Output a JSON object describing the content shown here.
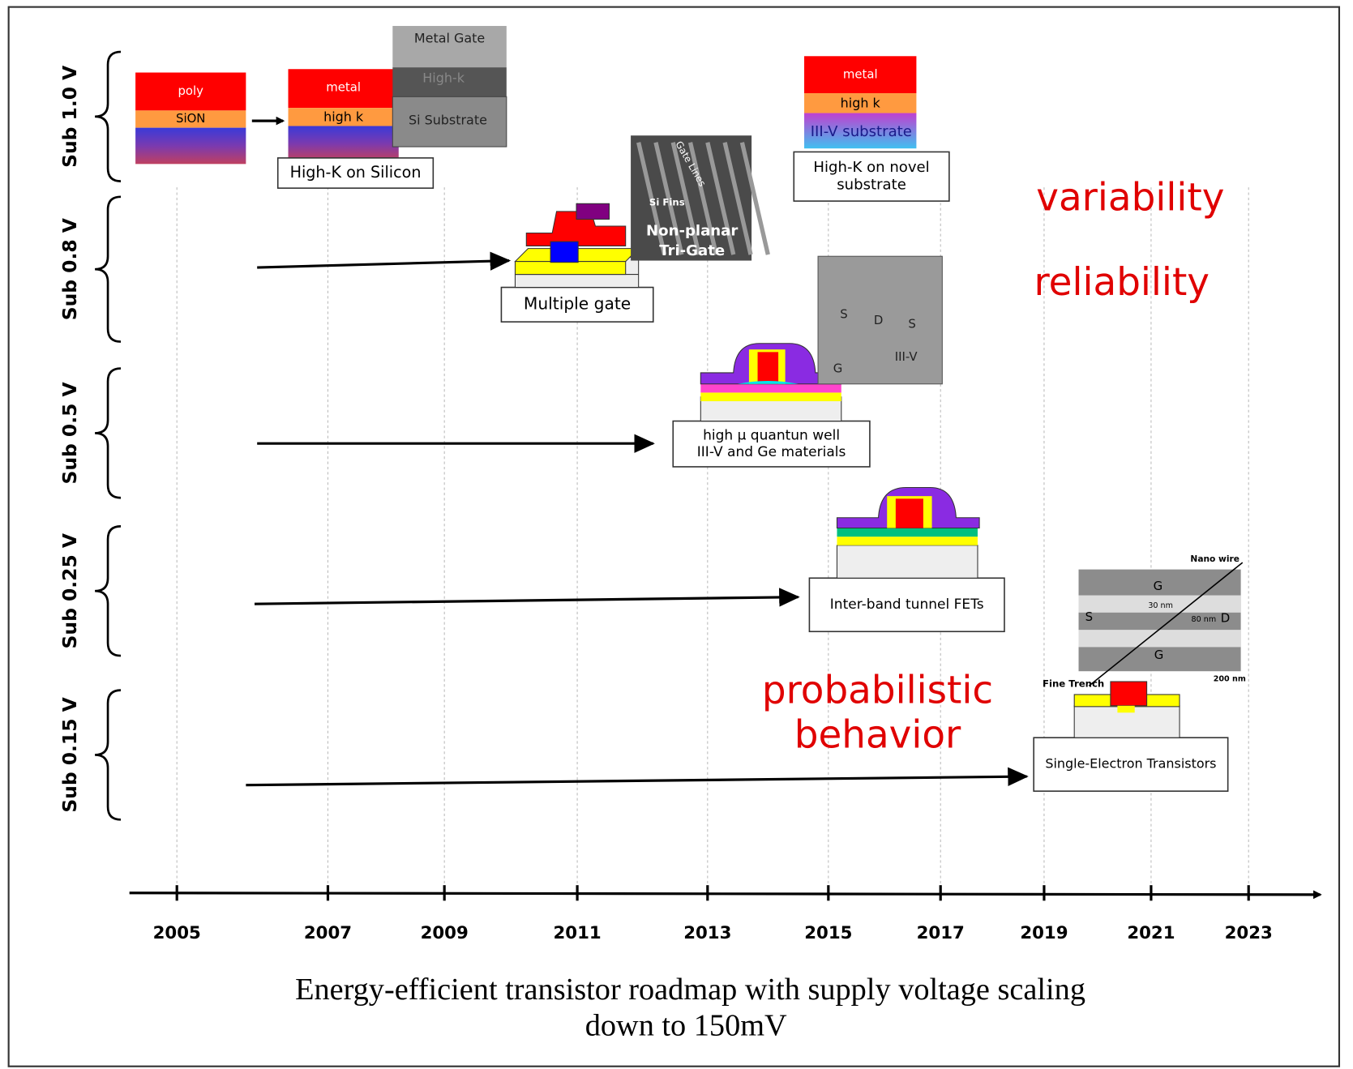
{
  "rows": [
    "Sub 1.0 V",
    "Sub 0.8 V",
    "Sub 0.5 V",
    "Sub 0.25 V",
    "Sub 0.15 V"
  ],
  "years": [
    "2005",
    "2007",
    "2009",
    "2011",
    "2013",
    "2015",
    "2017",
    "2019",
    "2021",
    "2023"
  ],
  "stacks": {
    "sion": [
      "poly",
      "SiON"
    ],
    "highk_si": [
      "metal",
      "high k"
    ],
    "sem_highk": [
      "Metal Gate",
      "High-k",
      "Si Substrate"
    ],
    "highk_novel": [
      "metal",
      "high k",
      "III-V substrate"
    ]
  },
  "sem": {
    "trigate": [
      "Gate Lines",
      "Si Fins",
      "Non-planar",
      "Tri-Gate"
    ],
    "qw": [
      "S",
      "D",
      "S",
      "G",
      "III-V"
    ],
    "set": [
      "Nano wire",
      "G",
      "S",
      "D",
      "G",
      "30 nm",
      "80 nm",
      "Fine Trench",
      "200 nm"
    ]
  },
  "boxes": {
    "high_k_si": [
      "High-K on Silicon"
    ],
    "high_k_novel": [
      "High-K on novel",
      "substrate"
    ],
    "multi_gate": [
      "Multiple gate"
    ],
    "qw": [
      "high µ quantun well",
      "III-V and Ge materials"
    ],
    "tfet": [
      "Inter-band tunnel FETs"
    ],
    "set": [
      "Single-Electron Transistors"
    ]
  },
  "annotations": {
    "variability": "variability",
    "reliability": "reliability",
    "probabilistic": [
      "probabilistic",
      "behavior"
    ]
  },
  "caption": [
    "Energy-efficient transistor roadmap with supply voltage scaling",
    "down to 150mV"
  ]
}
